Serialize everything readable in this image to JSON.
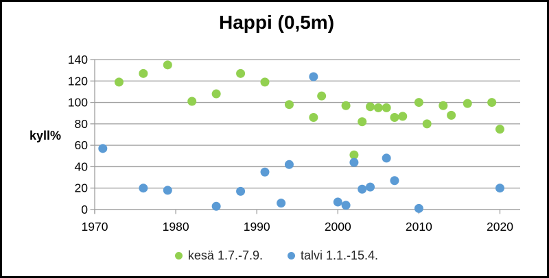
{
  "window": {
    "background": "#ffffff",
    "border_color": "#000000"
  },
  "chart_data": {
    "type": "scatter",
    "title": "Happi (0,5m)",
    "xlabel": "",
    "ylabel": "kyll%",
    "xlim": [
      1970,
      2022.5
    ],
    "ylim": [
      0,
      140
    ],
    "x_ticks": [
      1970,
      1980,
      1990,
      2000,
      2010,
      2020
    ],
    "y_ticks": [
      0,
      20,
      40,
      60,
      80,
      100,
      120,
      140
    ],
    "grid": "horizontal",
    "grid_color": "#9e9e9e",
    "axis_color": "#9e9e9e",
    "text_color": "#000000",
    "legend_position": "bottom",
    "marker": "circle",
    "series": [
      {
        "name": "kesä 1.7.-7.9.",
        "color": "#92D050",
        "points": [
          [
            1973,
            119
          ],
          [
            1976,
            127
          ],
          [
            1979,
            135
          ],
          [
            1982,
            101
          ],
          [
            1985,
            108
          ],
          [
            1988,
            127
          ],
          [
            1991,
            119
          ],
          [
            1994,
            98
          ],
          [
            1997,
            86
          ],
          [
            1998,
            106
          ],
          [
            2001,
            97
          ],
          [
            2002,
            51
          ],
          [
            2003,
            82
          ],
          [
            2004,
            96
          ],
          [
            2005,
            95
          ],
          [
            2006,
            95
          ],
          [
            2007,
            86
          ],
          [
            2008,
            87
          ],
          [
            2010,
            100
          ],
          [
            2011,
            80
          ],
          [
            2013,
            97
          ],
          [
            2014,
            88
          ],
          [
            2016,
            99
          ],
          [
            2019,
            100
          ],
          [
            2020,
            75
          ]
        ]
      },
      {
        "name": "talvi 1.1.-15.4.",
        "color": "#5B9BD5",
        "points": [
          [
            1971,
            57
          ],
          [
            1976,
            20
          ],
          [
            1979,
            18
          ],
          [
            1985,
            3
          ],
          [
            1988,
            17
          ],
          [
            1991,
            35
          ],
          [
            1993,
            6
          ],
          [
            1994,
            42
          ],
          [
            1997,
            124
          ],
          [
            2000,
            7
          ],
          [
            2001,
            4
          ],
          [
            2002,
            44
          ],
          [
            2003,
            19
          ],
          [
            2004,
            21
          ],
          [
            2006,
            48
          ],
          [
            2007,
            27
          ],
          [
            2010,
            1
          ],
          [
            2020,
            20
          ]
        ]
      }
    ]
  }
}
